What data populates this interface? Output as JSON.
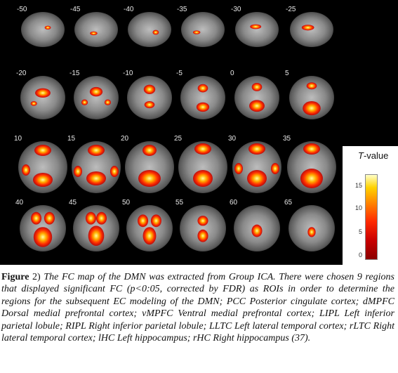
{
  "figure": {
    "slice_labels": [
      "-50",
      "-45",
      "-40",
      "-35",
      "-30",
      "-25",
      "-20",
      "-15",
      "-10",
      "-5",
      "0",
      "5",
      "10",
      "15",
      "20",
      "25",
      "30",
      "35",
      "40",
      "45",
      "50",
      "55",
      "60",
      "65"
    ],
    "colormap": {
      "title_italic": "T",
      "title_rest": "-value",
      "ticks": [
        "15",
        "10",
        "5",
        "0"
      ],
      "colors": [
        "#8a0000",
        "#c80000",
        "#ff2a00",
        "#ff8a00",
        "#ffd200",
        "#ffffc8"
      ]
    }
  },
  "caption": {
    "label": "Figure",
    "number": " 2)",
    "text": " The FC map of the DMN was extracted from Group ICA. There were chosen 9 regions that displayed significant FC (p<0:05, corrected by FDR) as ROIs in order to determine the regions for the subsequent EC modeling of the DMN; PCC Posterior cingulate cortex; dMPFC Dorsal medial prefrontal cortex; vMPFC Ventral medial prefrontal cortex; LIPL Left inferior parietal lobule; RIPL Right inferior parietal lobule; LLTC Left lateral temporal cortex; rLTC Right lateral temporal cortex; lHC Left hippocampus; rHC Right hippocampus (37)."
  }
}
